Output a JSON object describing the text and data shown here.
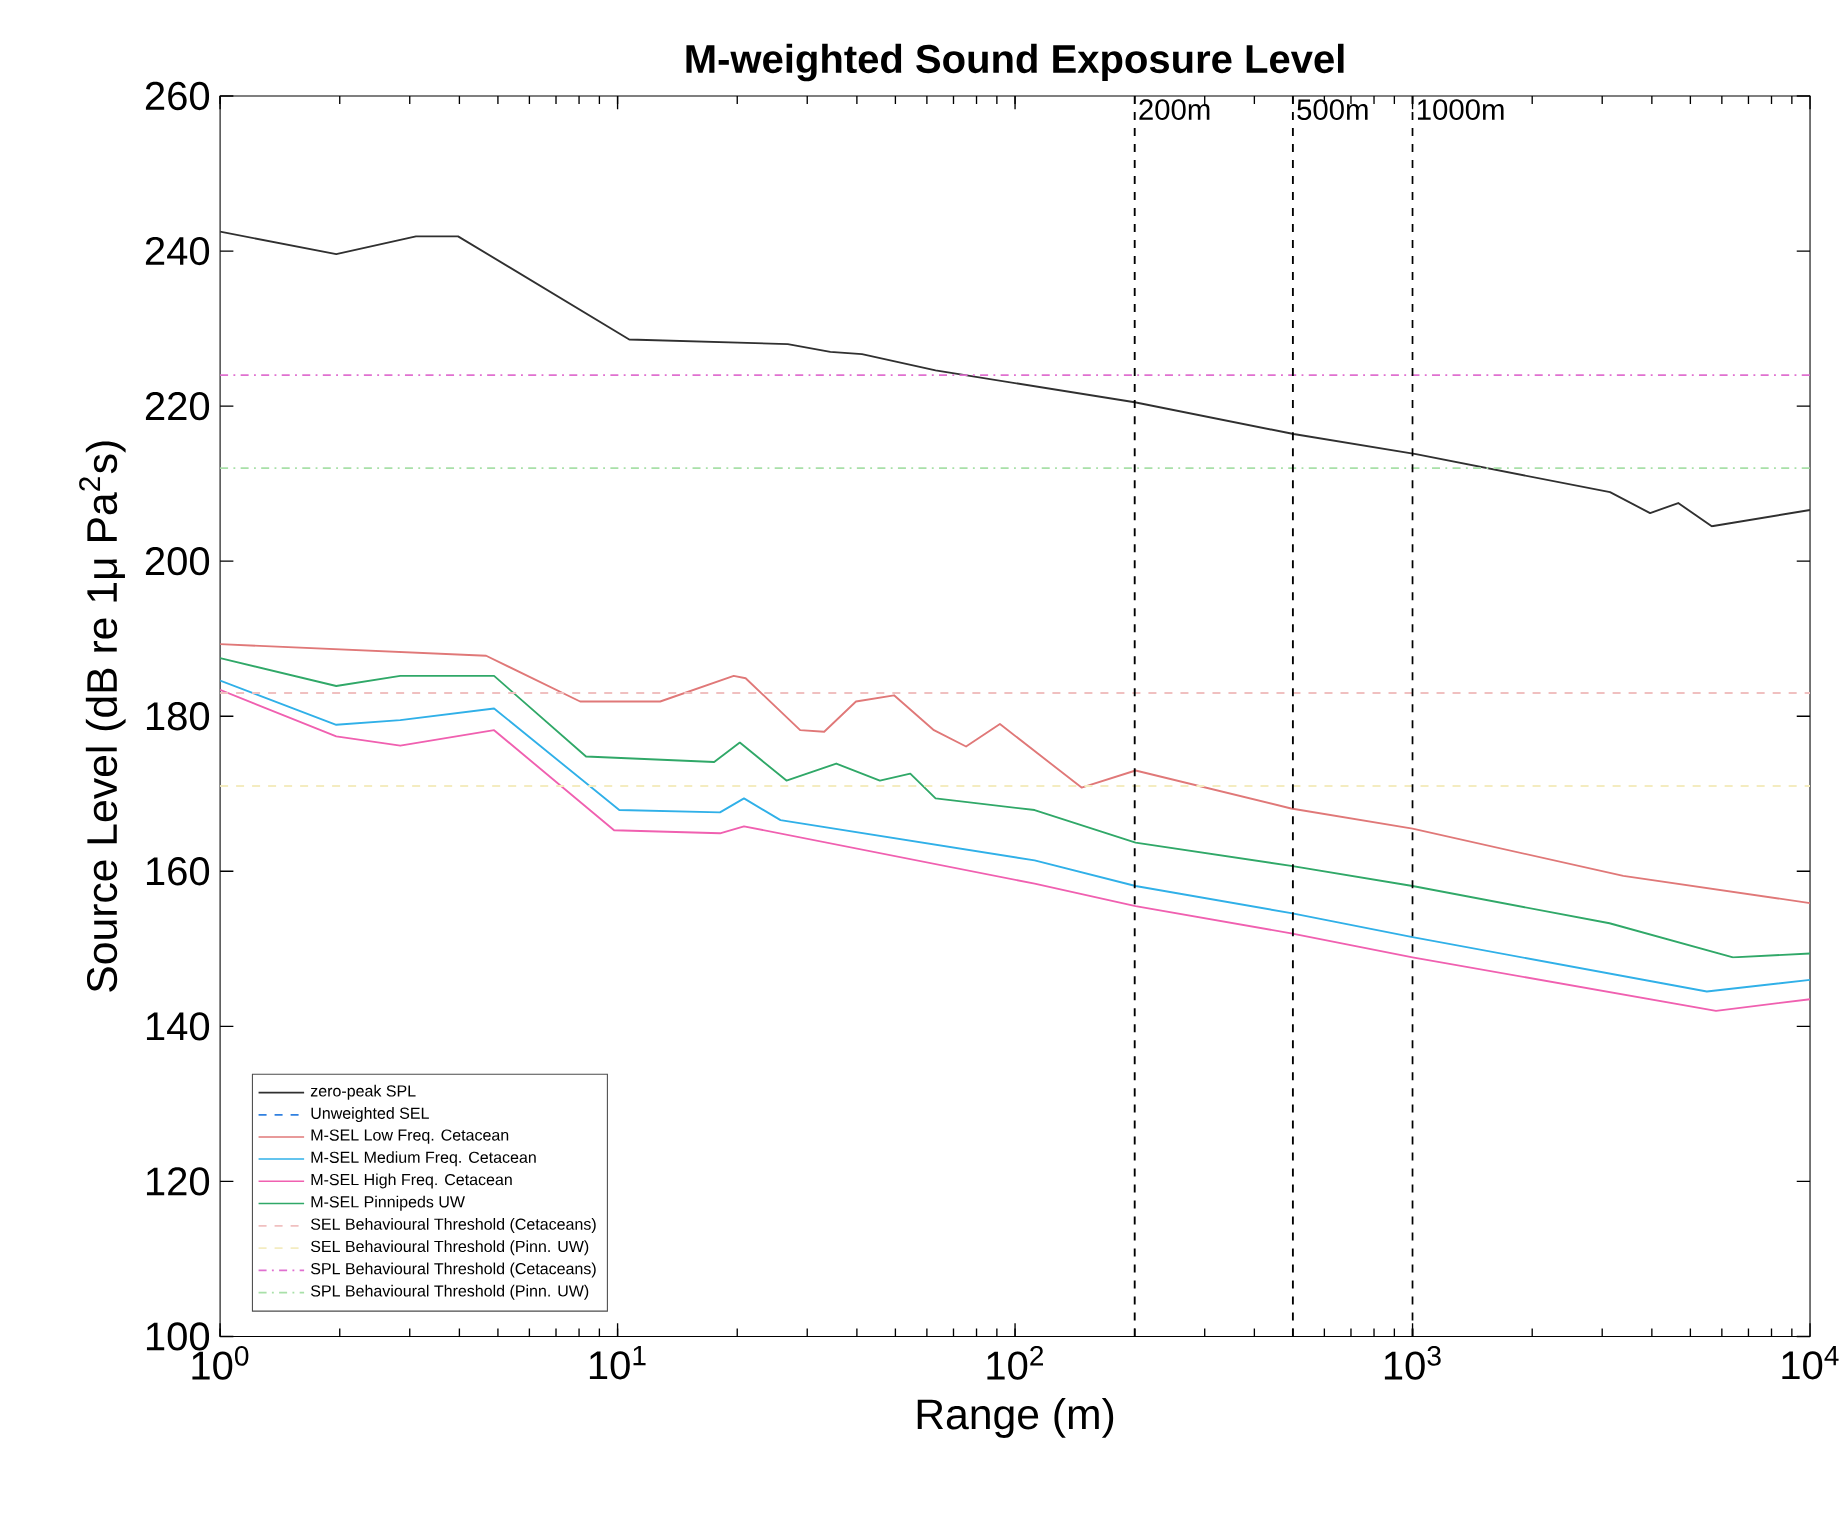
{
  "chart_data": {
    "type": "line",
    "title": "M-weighted Sound Exposure Level",
    "xlabel": "Range (m)",
    "ylabel": "Source Level (dB re 1μ Pa$^{2}$s)",
    "log": "x",
    "xlim": [
      1,
      10000
    ],
    "ylim": [
      100,
      260
    ],
    "xticks": [
      {
        "value": 1,
        "label": "10$^{0}$"
      },
      {
        "value": 10,
        "label": "10$^{1}$"
      },
      {
        "value": 100,
        "label": "10$^{2}$"
      },
      {
        "value": 1000,
        "label": "10$^{3}$"
      },
      {
        "value": 10000,
        "label": "10$^{4}$"
      }
    ],
    "yticks": [
      100,
      120,
      140,
      160,
      180,
      200,
      220,
      240,
      260
    ],
    "grid": false,
    "legend": "bottom left",
    "series": [
      {
        "name": "zero-peak SPL",
        "color": "#303030",
        "line_style": "solid",
        "x": [
          1,
          1.96,
          3.11,
          3.97,
          10.7,
          26.8,
          34.3,
          41.2,
          63.1,
          200,
          502,
          1020,
          3140,
          3960,
          4660,
          5660,
          10000
        ],
        "values": [
          242.5,
          239.6,
          241.9,
          241.9,
          228.6,
          228.0,
          227.0,
          226.7,
          224.6,
          220.5,
          216.4,
          213.8,
          208.9,
          206.2,
          207.5,
          204.5,
          206.6
        ]
      },
      {
        "name": "Unweighted SEL",
        "color": "#3080e0",
        "line_style": "dashed"
      },
      {
        "name": "M-SEL Low Freq. Cetacean",
        "color": "#e07878",
        "line_style": "solid",
        "x": [
          1,
          4.67,
          8.05,
          12.8,
          19.6,
          21.0,
          28.8,
          33.1,
          39.8,
          49.6,
          62.5,
          75.3,
          91.6,
          147,
          201,
          495,
          1000,
          3390,
          10000
        ],
        "values": [
          189.3,
          187.8,
          181.9,
          181.9,
          185.2,
          184.9,
          178.2,
          178.0,
          181.9,
          182.7,
          178.2,
          176.1,
          179.0,
          170.8,
          173.0,
          168.1,
          165.5,
          159.4,
          155.9
        ]
      },
      {
        "name": "M-SEL Medium Freq. Cetacean",
        "color": "#30b0e8",
        "line_style": "solid",
        "x": [
          1,
          1.96,
          2.84,
          4.89,
          10.1,
          18.1,
          20.8,
          25.7,
          112,
          201,
          495,
          1000,
          5500,
          10000
        ],
        "values": [
          184.6,
          178.9,
          179.5,
          181.0,
          167.9,
          167.6,
          169.4,
          166.6,
          161.4,
          158.1,
          154.6,
          151.5,
          144.5,
          146.0
        ]
      },
      {
        "name": "M-SEL High Freq. Cetacean",
        "color": "#f060b0",
        "line_style": "solid",
        "x": [
          1,
          1.96,
          2.84,
          4.89,
          9.8,
          18.1,
          20.8,
          112,
          201,
          495,
          1000,
          5800,
          10000
        ],
        "values": [
          183.4,
          177.4,
          176.2,
          178.2,
          165.3,
          164.9,
          165.8,
          158.4,
          155.5,
          152.0,
          148.9,
          142.0,
          143.5
        ]
      },
      {
        "name": "M-SEL Pinnipeds UW",
        "color": "#30a868",
        "line_style": "solid",
        "x": [
          1,
          1.96,
          2.84,
          4.89,
          8.33,
          17.5,
          20.3,
          26.6,
          35.5,
          45.7,
          54.5,
          63.1,
          112,
          201,
          495,
          1000,
          3130,
          6400,
          10000
        ],
        "values": [
          187.5,
          183.9,
          185.2,
          185.2,
          174.8,
          174.1,
          176.6,
          171.7,
          173.9,
          171.7,
          172.6,
          169.4,
          167.9,
          163.7,
          160.7,
          158.1,
          153.3,
          148.9,
          149.4
        ]
      },
      {
        "name": "SEL Behavioural Threshold (Cetaceans)",
        "color": "#f0c0c0",
        "line_style": "dashed",
        "x": [
          1,
          10000
        ],
        "values": [
          183,
          183
        ]
      },
      {
        "name": "SEL Behavioural Threshold (Pinn. UW)",
        "color": "#f4ecc0",
        "line_style": "dashed",
        "x": [
          1,
          10000
        ],
        "values": [
          171,
          171
        ]
      },
      {
        "name": "SPL Behavioural Threshold (Cetaceans)",
        "color": "#e070d0",
        "line_style": "dashdot",
        "x": [
          1,
          10000
        ],
        "values": [
          224,
          224
        ]
      },
      {
        "name": "SPL Behavioural Threshold (Pinn. UW)",
        "color": "#a8e0a8",
        "line_style": "dashdot",
        "x": [
          1,
          10000
        ],
        "values": [
          212,
          212
        ]
      }
    ],
    "ref_lines": [
      {
        "axis": "x",
        "value": 200,
        "label": "200m",
        "color": "#000000",
        "line_style": "dashed"
      },
      {
        "axis": "x",
        "value": 500,
        "label": "500m",
        "color": "#000000",
        "line_style": "dashed"
      },
      {
        "axis": "x",
        "value": 1000,
        "label": "1000m",
        "color": "#000000",
        "line_style": "dashed"
      }
    ]
  }
}
